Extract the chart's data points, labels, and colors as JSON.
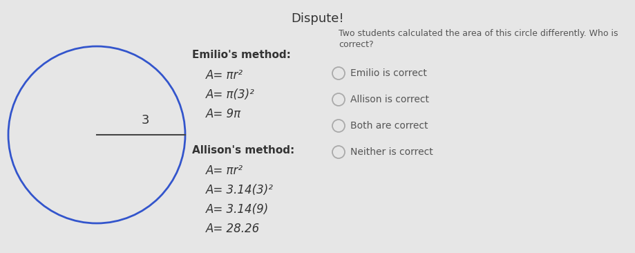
{
  "title": "Dispute!",
  "title_fontsize": 13,
  "bg_color": "#e6e6e6",
  "circle_color": "#3355cc",
  "radius_label": "3",
  "emilio_header": "Emilio's method:",
  "emilio_lines": [
    "A= πr²",
    "A= π(3)²",
    "A= 9π"
  ],
  "allison_header": "Allison's method:",
  "allison_lines": [
    "A= πr²",
    "A= 3.14(3)²",
    "A= 3.14(9)",
    "A= 28.26"
  ],
  "question_line1": "Two students calculated the area of this circle differently. Who is",
  "question_line2": "correct?",
  "options": [
    "Emilio is correct",
    "Allison is correct",
    "Both are correct",
    "Neither is correct"
  ],
  "text_color": "#555555",
  "header_color": "#333333",
  "option_circle_color": "#aaaaaa",
  "fig_width": 9.2,
  "fig_height": 3.66,
  "dpi": 100
}
